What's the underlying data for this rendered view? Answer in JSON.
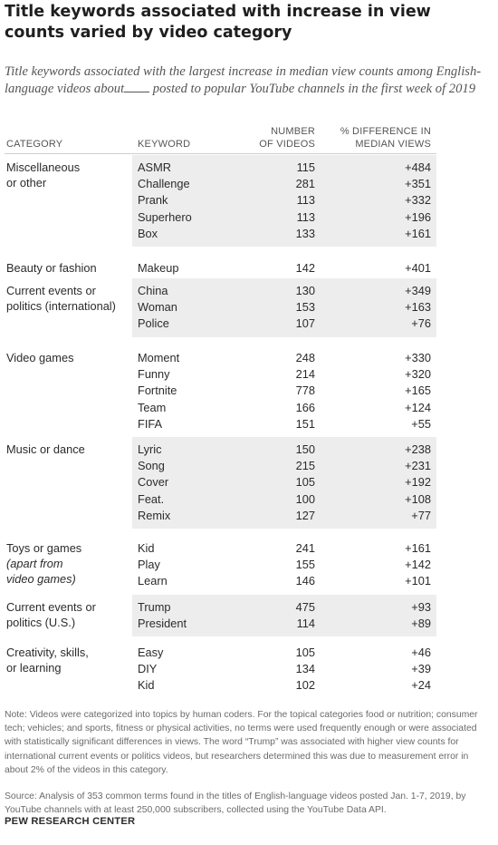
{
  "title": "Title keywords associated with increase in view counts varied by video category",
  "subtitle_before": "Title keywords associated with the largest increase in median view counts among English-language videos about",
  "subtitle_after": "posted to popular YouTube channels in the first week of 2019",
  "columns": {
    "category": "CATEGORY",
    "keyword": "KEYWORD",
    "num_line1": "NUMBER",
    "num_line2": "OF VIDEOS",
    "pct_line1": "% DIFFERENCE IN",
    "pct_line2": "MEDIAN VIEWS"
  },
  "chart_data": {
    "type": "table",
    "groups": [
      {
        "category": [
          "Miscellaneous",
          "or other"
        ],
        "shaded": true,
        "rows": [
          {
            "keyword": "ASMR",
            "videos": "115",
            "diff": "+484"
          },
          {
            "keyword": "Challenge",
            "videos": "281",
            "diff": "+351"
          },
          {
            "keyword": "Prank",
            "videos": "113",
            "diff": "+332"
          },
          {
            "keyword": "Superhero",
            "videos": "113",
            "diff": "+196"
          },
          {
            "keyword": "Box",
            "videos": "133",
            "diff": "+161"
          }
        ]
      },
      {
        "category": [
          "Beauty or fashion"
        ],
        "shaded": false,
        "rows": [
          {
            "keyword": "Makeup",
            "videos": "142",
            "diff": "+401"
          }
        ]
      },
      {
        "category": [
          "Current events or",
          "politics (international)"
        ],
        "shaded": true,
        "rows": [
          {
            "keyword": "China",
            "videos": "130",
            "diff": "+349"
          },
          {
            "keyword": "Woman",
            "videos": "153",
            "diff": "+163"
          },
          {
            "keyword": "Police",
            "videos": "107",
            "diff": "+76"
          }
        ]
      },
      {
        "category": [
          "Video games"
        ],
        "shaded": false,
        "rows": [
          {
            "keyword": "Moment",
            "videos": "248",
            "diff": "+330"
          },
          {
            "keyword": "Funny",
            "videos": "214",
            "diff": "+320"
          },
          {
            "keyword": "Fortnite",
            "videos": "778",
            "diff": "+165"
          },
          {
            "keyword": "Team",
            "videos": "166",
            "diff": "+124"
          },
          {
            "keyword": "FIFA",
            "videos": "151",
            "diff": "+55"
          }
        ]
      },
      {
        "category": [
          "Music or dance"
        ],
        "shaded": true,
        "rows": [
          {
            "keyword": "Lyric",
            "videos": "150",
            "diff": "+238"
          },
          {
            "keyword": "Song",
            "videos": "215",
            "diff": "+231"
          },
          {
            "keyword": "Cover",
            "videos": "105",
            "diff": "+192"
          },
          {
            "keyword": "Feat.",
            "videos": "100",
            "diff": "+108"
          },
          {
            "keyword": "Remix",
            "videos": "127",
            "diff": "+77"
          }
        ]
      },
      {
        "category": [
          "Toys or games",
          "(apart from",
          "video games)"
        ],
        "category_italic_from": 1,
        "shaded": false,
        "rows": [
          {
            "keyword": "Kid",
            "videos": "241",
            "diff": "+161"
          },
          {
            "keyword": "Play",
            "videos": "155",
            "diff": "+142"
          },
          {
            "keyword": "Learn",
            "videos": "146",
            "diff": "+101"
          }
        ]
      },
      {
        "category": [
          "Current events or",
          "politics (U.S.)"
        ],
        "shaded": true,
        "rows": [
          {
            "keyword": "Trump",
            "videos": "475",
            "diff": "+93"
          },
          {
            "keyword": "President",
            "videos": "114",
            "diff": "+89"
          }
        ]
      },
      {
        "category": [
          "Creativity, skills,",
          "or learning"
        ],
        "shaded": false,
        "rows": [
          {
            "keyword": "Easy",
            "videos": "105",
            "diff": "+46"
          },
          {
            "keyword": "DIY",
            "videos": "134",
            "diff": "+39"
          },
          {
            "keyword": "Kid",
            "videos": "102",
            "diff": "+24"
          }
        ]
      }
    ]
  },
  "note": "Note: Videos were categorized into topics by human coders. For the topical categories food or nutrition; consumer tech; vehicles; and sports, fitness or physical activities, no terms were used frequently enough or were associated with statistically significant differences in views. The word “Trump” was associated with higher view counts for international current events or politics videos, but researchers determined this was due to measurement error in about 2% of the videos in this category.",
  "source": "Source: Analysis of 353 common terms found in the titles of English-language videos posted Jan. 1-7, 2019, by YouTube channels with at least 250,000 subscribers, collected using the YouTube Data API.",
  "brand": "PEW RESEARCH CENTER",
  "colors": {
    "band": "#ededed",
    "text": "#2b2b2b",
    "note": "#6a6a6a"
  }
}
